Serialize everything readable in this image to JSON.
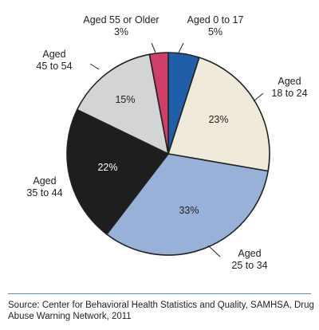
{
  "chart_data": {
    "type": "pie",
    "slices": [
      {
        "label_lines": [
          "Aged 0 to 17"
        ],
        "value": 5,
        "value_text": "5%",
        "color": "#1f5faa",
        "inside": false
      },
      {
        "label_lines": [
          "Aged",
          "18 to 24"
        ],
        "value": 23,
        "value_text": "23%",
        "color": "#f0eada",
        "inside": true
      },
      {
        "label_lines": [
          "Aged",
          "25 to 34"
        ],
        "value": 33,
        "value_text": "33%",
        "color": "#98b1d8",
        "inside": true
      },
      {
        "label_lines": [
          "Aged",
          "35 to 44"
        ],
        "value": 22,
        "value_text": "22%",
        "color": "#1e1e1e",
        "inside": true
      },
      {
        "label_lines": [
          "Aged",
          "45 to 54"
        ],
        "value": 15,
        "value_text": "15%",
        "color": "#d3d4d6",
        "inside": true
      },
      {
        "label_lines": [
          "Aged 55 or Older"
        ],
        "value": 3,
        "value_text": "3%",
        "color": "#d03f6a",
        "inside": false
      }
    ],
    "outline_color": "#222222"
  },
  "source_text": "Source: Center for Behavioral Health Statistics and Quality, SAMHSA, Drug Abuse Warning Network, 2011"
}
